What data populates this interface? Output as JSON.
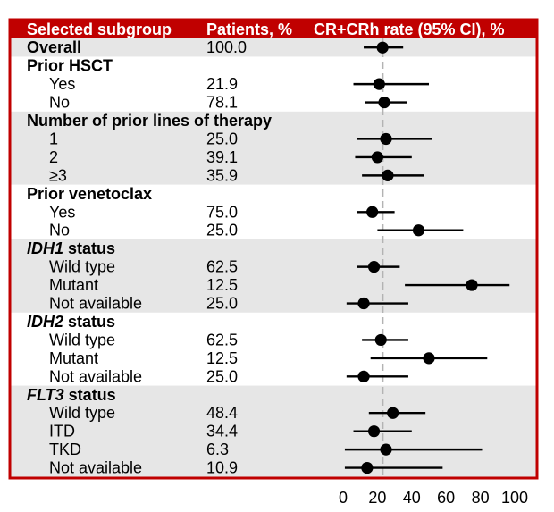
{
  "header": {
    "subgroup": "Selected subgroup",
    "patients": "Patients, %",
    "rate": "CR+CRh rate (95% CI), %"
  },
  "colors": {
    "header_bg": "#c00000",
    "border": "#c00000",
    "band": "#e6e6e6",
    "marker": "#000000",
    "reference_line": "#b3b3b3"
  },
  "chart_data": {
    "type": "forest",
    "xlim": [
      0,
      100
    ],
    "xticks": [
      0,
      20,
      40,
      60,
      80,
      100
    ],
    "reference_x": 23,
    "grid": false,
    "groups": [
      {
        "title": "Overall",
        "rows": [
          {
            "label": "",
            "patients": "100.0",
            "estimate": 23,
            "ci": [
              12,
              35
            ]
          }
        ]
      },
      {
        "title": "Prior HSCT",
        "rows": [
          {
            "label": "Yes",
            "patients": "21.9",
            "estimate": 21,
            "ci": [
              6,
              50
            ]
          },
          {
            "label": "No",
            "patients": "78.1",
            "estimate": 24,
            "ci": [
              13,
              37
            ]
          }
        ]
      },
      {
        "title": "Number of prior lines of therapy",
        "rows": [
          {
            "label": "1",
            "patients": "25.0",
            "estimate": 25,
            "ci": [
              8,
              52
            ]
          },
          {
            "label": "2",
            "patients": "39.1",
            "estimate": 20,
            "ci": [
              7,
              40
            ]
          },
          {
            "label": "≥3",
            "patients": "35.9",
            "estimate": 26,
            "ci": [
              11,
              47
            ]
          }
        ]
      },
      {
        "title": "Prior venetoclax",
        "rows": [
          {
            "label": "Yes",
            "patients": "75.0",
            "estimate": 17,
            "ci": [
              8,
              30
            ]
          },
          {
            "label": "No",
            "patients": "25.0",
            "estimate": 44,
            "ci": [
              20,
              70
            ]
          }
        ]
      },
      {
        "title_italic": "IDH1",
        "title": " status",
        "rows": [
          {
            "label": "Wild type",
            "patients": "62.5",
            "estimate": 18,
            "ci": [
              8,
              33
            ]
          },
          {
            "label": "Mutant",
            "patients": "12.5",
            "estimate": 75,
            "ci": [
              36,
              97
            ]
          },
          {
            "label": "Not available",
            "patients": "25.0",
            "estimate": 12,
            "ci": [
              2,
              38
            ]
          }
        ]
      },
      {
        "title_italic": "IDH2",
        "title": " status",
        "rows": [
          {
            "label": "Wild type",
            "patients": "62.5",
            "estimate": 22,
            "ci": [
              11,
              38
            ]
          },
          {
            "label": "Mutant",
            "patients": "12.5",
            "estimate": 50,
            "ci": [
              16,
              84
            ]
          },
          {
            "label": "Not available",
            "patients": "25.0",
            "estimate": 12,
            "ci": [
              2,
              38
            ]
          }
        ]
      },
      {
        "title_italic": "FLT3",
        "title": " status",
        "rows": [
          {
            "label": "Wild type",
            "patients": "48.4",
            "estimate": 29,
            "ci": [
              15,
              48
            ]
          },
          {
            "label": "ITD",
            "patients": "34.4",
            "estimate": 18,
            "ci": [
              6,
              40
            ]
          },
          {
            "label": "TKD",
            "patients": "6.3",
            "estimate": 25,
            "ci": [
              1,
              81
            ]
          },
          {
            "label": "Not available",
            "patients": "10.9",
            "estimate": 14,
            "ci": [
              1,
              58
            ]
          }
        ]
      }
    ]
  }
}
